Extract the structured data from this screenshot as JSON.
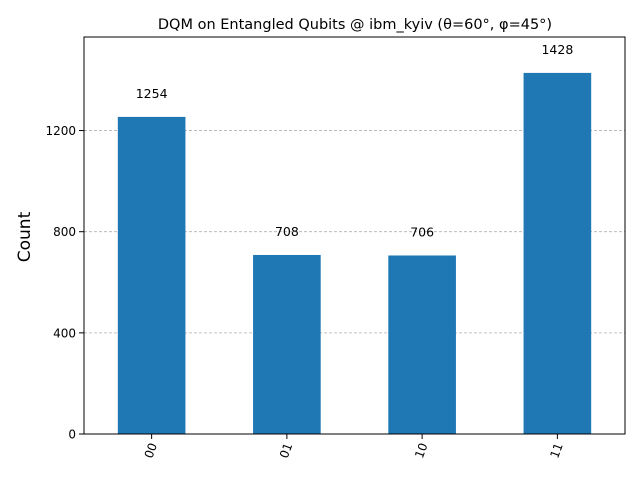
{
  "chart_data": {
    "type": "bar",
    "title": "DQM on Entangled Qubits @ ibm_kyiv (θ=60°, φ=45°)",
    "xlabel": "",
    "ylabel": "Count",
    "categories": [
      "00",
      "01",
      "10",
      "11"
    ],
    "values": [
      1254,
      708,
      706,
      1428
    ],
    "data_labels": [
      "1254",
      "708",
      "706",
      "1428"
    ],
    "yticks": [
      0,
      400,
      800,
      1200
    ],
    "ylim": [
      0,
      1570
    ],
    "grid": "horizontal dashed",
    "bar_color": "#1f77b4",
    "grid_color": "#b0b0b0"
  }
}
